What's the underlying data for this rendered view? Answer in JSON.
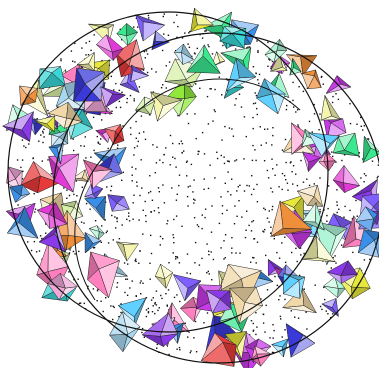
{
  "figure": {
    "kind": "annulus-of-tetrahedra",
    "description_visible_text": "",
    "background_color": "#ffffff",
    "outline_color": "#111111",
    "dot_color": "#111111",
    "palette": [
      "#3a3ad9",
      "#e23ad6",
      "#39d6d6",
      "#8fe83a",
      "#e8e83a",
      "#f08f3a",
      "#e83a3a",
      "#8a3ae8",
      "#3ae88f",
      "#f0a8d8",
      "#a8d8f0",
      "#d8f0a8",
      "#f0d8a8",
      "#c83ae8",
      "#3a8fe8",
      "#f5f5b0",
      "#b0f5d8",
      "#ff7fbf",
      "#5fd0ff",
      "#7f5fff"
    ],
    "outer_ring_color": "#111111"
  }
}
